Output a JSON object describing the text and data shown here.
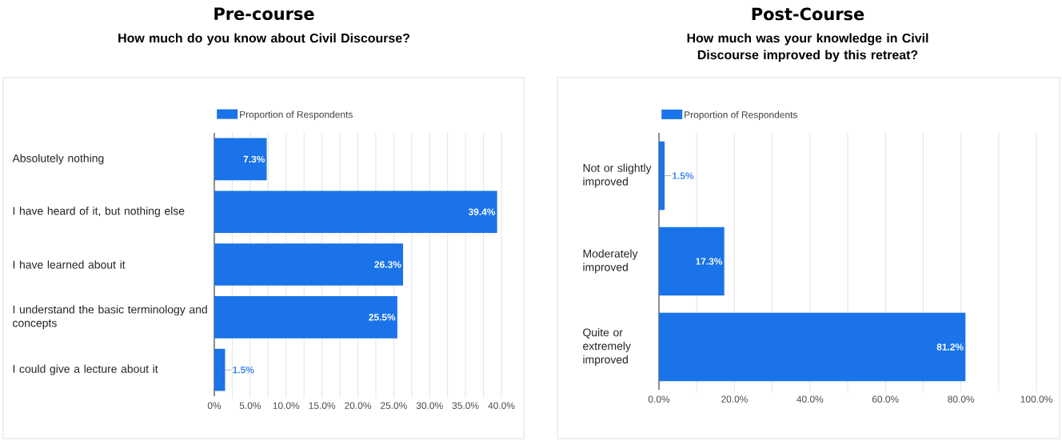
{
  "chart_data": [
    {
      "type": "bar",
      "orientation": "horizontal",
      "title": "Pre-course",
      "subtitle": "How much do you know about Civil Discourse?",
      "categories": [
        "Absolutely nothing",
        "I have heard of it, but nothing else",
        "I have learned about it",
        "I understand the basic terminology and concepts",
        "I could give a lecture about it"
      ],
      "series": [
        {
          "name": "Proportion of Respondents",
          "color": "#1a73e8",
          "values": [
            7.3,
            39.4,
            26.3,
            25.5,
            1.5
          ],
          "value_labels": [
            "7.3%",
            "39.4%",
            "26.3%",
            "25.5%",
            "1.5%"
          ]
        }
      ],
      "xlim": [
        0,
        40
      ],
      "xticks": [
        {
          "value": 0,
          "label": "0%"
        },
        {
          "value": 2.5,
          "label": null
        },
        {
          "value": 5,
          "label": "5.0%"
        },
        {
          "value": 7.5,
          "label": null
        },
        {
          "value": 10,
          "label": "10.0%"
        },
        {
          "value": 12.5,
          "label": null
        },
        {
          "value": 15,
          "label": "15.0%"
        },
        {
          "value": 17.5,
          "label": null
        },
        {
          "value": 20,
          "label": "20.0%"
        },
        {
          "value": 22.5,
          "label": null
        },
        {
          "value": 25,
          "label": "25.0%"
        },
        {
          "value": 27.5,
          "label": null
        },
        {
          "value": 30,
          "label": "30.0%"
        },
        {
          "value": 32.5,
          "label": null
        },
        {
          "value": 35,
          "label": "35.0%"
        },
        {
          "value": 37.5,
          "label": null
        },
        {
          "value": 40,
          "label": "40.0%"
        }
      ],
      "grid": "x",
      "legend": "top",
      "data_labels": true
    },
    {
      "type": "bar",
      "orientation": "horizontal",
      "title": "Post-Course",
      "subtitle": "How much was your knowledge in Civil Discourse improved by this retreat?",
      "categories": [
        "Not or slightly improved",
        "Moderately improved",
        "Quite or extremely improved"
      ],
      "series": [
        {
          "name": "Proportion of Respondents",
          "color": "#1a73e8",
          "values": [
            1.5,
            17.3,
            81.2
          ],
          "value_labels": [
            "1.5%",
            "17.3%",
            "81.2%"
          ]
        }
      ],
      "xlim": [
        0,
        100
      ],
      "xticks": [
        {
          "value": 0,
          "label": "0.0%"
        },
        {
          "value": 10,
          "label": null
        },
        {
          "value": 20,
          "label": "20.0%"
        },
        {
          "value": 30,
          "label": null
        },
        {
          "value": 40,
          "label": "40.0%"
        },
        {
          "value": 50,
          "label": null
        },
        {
          "value": 60,
          "label": "60.0%"
        },
        {
          "value": 70,
          "label": null
        },
        {
          "value": 80,
          "label": "80.0%"
        },
        {
          "value": 90,
          "label": null
        },
        {
          "value": 100,
          "label": "100.0%"
        }
      ],
      "grid": "x",
      "legend": "top",
      "data_labels": true
    }
  ]
}
